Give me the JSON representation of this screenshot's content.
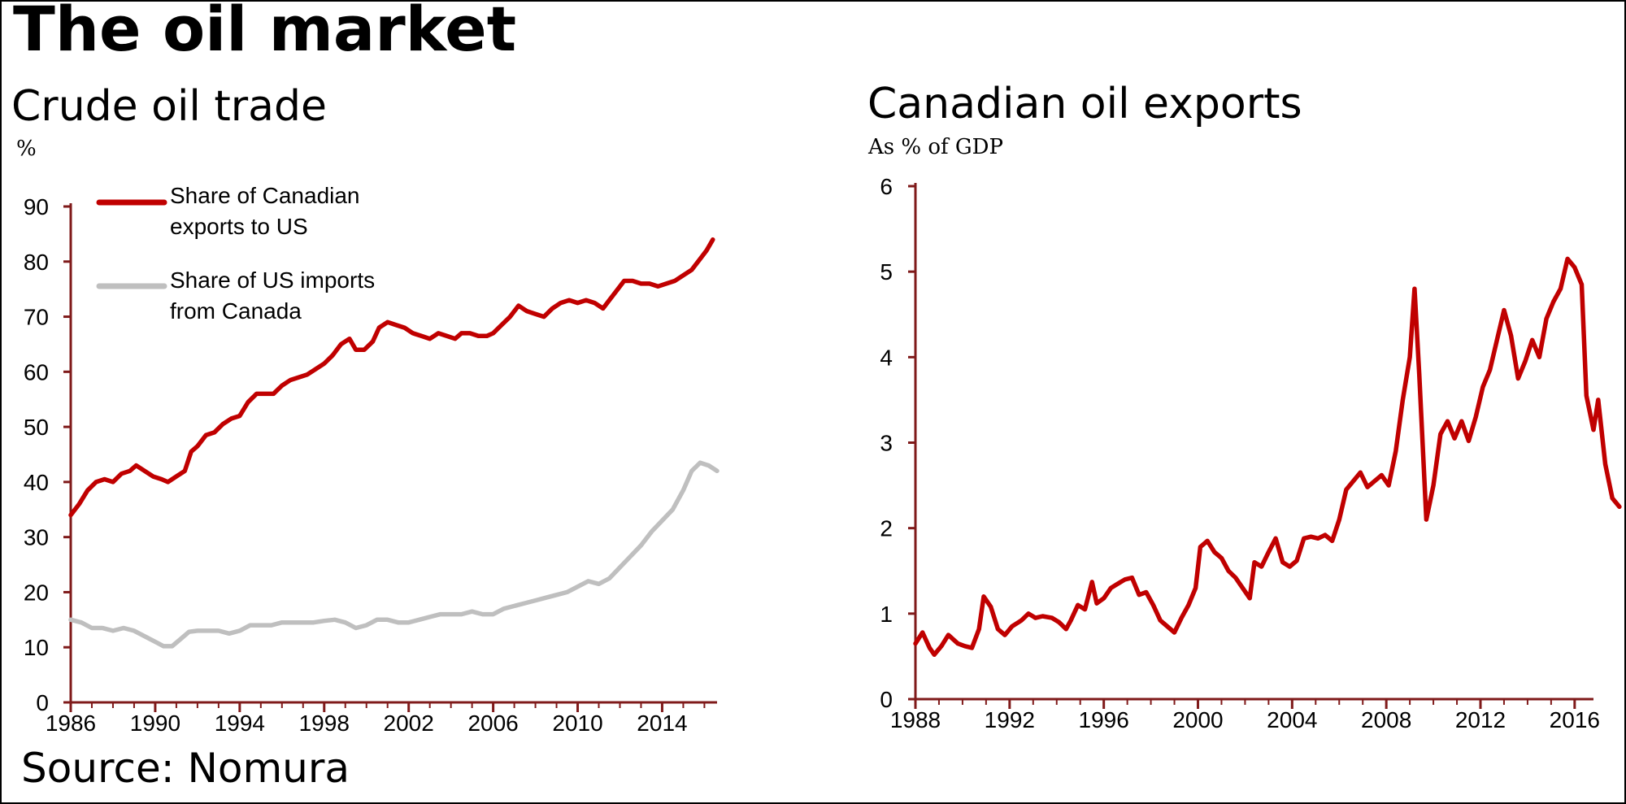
{
  "header": {
    "title": "The oil market"
  },
  "source": "Source: Nomura",
  "colors": {
    "red": "#C00000",
    "gray": "#BFBFBF",
    "axis": "#7F1A1A"
  },
  "chart_data": [
    {
      "type": "line",
      "title": "Crude oil trade",
      "unit": "%",
      "xlabel": "",
      "ylabel": "%",
      "xlim": [
        1986,
        2016.6
      ],
      "ylim": [
        0,
        90
      ],
      "x_ticks": [
        1986,
        1990,
        1994,
        1998,
        2002,
        2006,
        2010,
        2014
      ],
      "y_ticks": [
        0,
        10,
        20,
        30,
        40,
        50,
        60,
        70,
        80,
        90
      ],
      "legend_position": "top-left",
      "series": [
        {
          "name": "Share of Canadian exports to US",
          "legend_lines": [
            "Share of Canadian",
            "exports to US"
          ],
          "color": "#C00000",
          "points": [
            [
              1986.0,
              34
            ],
            [
              1986.4,
              36
            ],
            [
              1986.8,
              38.5
            ],
            [
              1987.2,
              40
            ],
            [
              1987.6,
              40.5
            ],
            [
              1988.0,
              40
            ],
            [
              1988.4,
              41.5
            ],
            [
              1988.8,
              42
            ],
            [
              1989.1,
              43
            ],
            [
              1989.5,
              42
            ],
            [
              1989.9,
              41
            ],
            [
              1990.3,
              40.5
            ],
            [
              1990.6,
              40
            ],
            [
              1991.0,
              41
            ],
            [
              1991.4,
              42
            ],
            [
              1991.7,
              45.5
            ],
            [
              1992.0,
              46.5
            ],
            [
              1992.4,
              48.5
            ],
            [
              1992.8,
              49
            ],
            [
              1993.2,
              50.5
            ],
            [
              1993.6,
              51.5
            ],
            [
              1994.0,
              52
            ],
            [
              1994.4,
              54.5
            ],
            [
              1994.8,
              56
            ],
            [
              1995.2,
              56
            ],
            [
              1995.6,
              56
            ],
            [
              1996.0,
              57.5
            ],
            [
              1996.4,
              58.5
            ],
            [
              1996.8,
              59
            ],
            [
              1997.2,
              59.5
            ],
            [
              1997.6,
              60.5
            ],
            [
              1998.0,
              61.5
            ],
            [
              1998.4,
              63
            ],
            [
              1998.8,
              65
            ],
            [
              1999.2,
              66
            ],
            [
              1999.5,
              64
            ],
            [
              1999.9,
              64
            ],
            [
              2000.3,
              65.5
            ],
            [
              2000.6,
              68
            ],
            [
              2001.0,
              69
            ],
            [
              2001.4,
              68.5
            ],
            [
              2001.8,
              68
            ],
            [
              2002.2,
              67
            ],
            [
              2002.6,
              66.5
            ],
            [
              2003.0,
              66
            ],
            [
              2003.4,
              67
            ],
            [
              2003.8,
              66.5
            ],
            [
              2004.2,
              66
            ],
            [
              2004.5,
              67
            ],
            [
              2004.9,
              67
            ],
            [
              2005.3,
              66.5
            ],
            [
              2005.7,
              66.5
            ],
            [
              2006.0,
              67
            ],
            [
              2006.4,
              68.5
            ],
            [
              2006.8,
              70
            ],
            [
              2007.2,
              72
            ],
            [
              2007.6,
              71
            ],
            [
              2008.0,
              70.5
            ],
            [
              2008.4,
              70
            ],
            [
              2008.8,
              71.5
            ],
            [
              2009.2,
              72.5
            ],
            [
              2009.6,
              73
            ],
            [
              2010.0,
              72.5
            ],
            [
              2010.4,
              73
            ],
            [
              2010.8,
              72.5
            ],
            [
              2011.2,
              71.5
            ],
            [
              2011.5,
              73
            ],
            [
              2011.9,
              75
            ],
            [
              2012.2,
              76.5
            ],
            [
              2012.6,
              76.5
            ],
            [
              2013.0,
              76
            ],
            [
              2013.4,
              76
            ],
            [
              2013.8,
              75.5
            ],
            [
              2014.2,
              76
            ],
            [
              2014.6,
              76.5
            ],
            [
              2015.0,
              77.5
            ],
            [
              2015.4,
              78.5
            ],
            [
              2015.8,
              80.5
            ],
            [
              2016.1,
              82
            ],
            [
              2016.4,
              84
            ]
          ]
        },
        {
          "name": "Share of US imports from Canada",
          "legend_lines": [
            "Share of US imports",
            "from Canada"
          ],
          "color": "#BFBFBF",
          "points": [
            [
              1986.0,
              15
            ],
            [
              1986.5,
              14.5
            ],
            [
              1987.0,
              13.5
            ],
            [
              1987.5,
              13.5
            ],
            [
              1988.0,
              13
            ],
            [
              1988.5,
              13.5
            ],
            [
              1989.0,
              13
            ],
            [
              1989.5,
              12
            ],
            [
              1990.0,
              11
            ],
            [
              1990.4,
              10.2
            ],
            [
              1990.8,
              10.2
            ],
            [
              1991.2,
              11.5
            ],
            [
              1991.6,
              12.8
            ],
            [
              1992.0,
              13
            ],
            [
              1992.5,
              13
            ],
            [
              1993.0,
              13
            ],
            [
              1993.5,
              12.5
            ],
            [
              1994.0,
              13
            ],
            [
              1994.5,
              14
            ],
            [
              1995.0,
              14
            ],
            [
              1995.5,
              14
            ],
            [
              1996.0,
              14.5
            ],
            [
              1996.5,
              14.5
            ],
            [
              1997.0,
              14.5
            ],
            [
              1997.5,
              14.5
            ],
            [
              1998.0,
              14.8
            ],
            [
              1998.5,
              15
            ],
            [
              1999.0,
              14.5
            ],
            [
              1999.5,
              13.5
            ],
            [
              2000.0,
              14
            ],
            [
              2000.5,
              15
            ],
            [
              2001.0,
              15
            ],
            [
              2001.5,
              14.5
            ],
            [
              2002.0,
              14.5
            ],
            [
              2002.5,
              15
            ],
            [
              2003.0,
              15.5
            ],
            [
              2003.5,
              16
            ],
            [
              2004.0,
              16
            ],
            [
              2004.5,
              16
            ],
            [
              2005.0,
              16.5
            ],
            [
              2005.5,
              16
            ],
            [
              2006.0,
              16
            ],
            [
              2006.5,
              17
            ],
            [
              2007.0,
              17.5
            ],
            [
              2007.5,
              18
            ],
            [
              2008.0,
              18.5
            ],
            [
              2008.5,
              19
            ],
            [
              2009.0,
              19.5
            ],
            [
              2009.5,
              20
            ],
            [
              2010.0,
              21
            ],
            [
              2010.5,
              22
            ],
            [
              2011.0,
              21.5
            ],
            [
              2011.5,
              22.5
            ],
            [
              2012.0,
              24.5
            ],
            [
              2012.5,
              26.5
            ],
            [
              2013.0,
              28.5
            ],
            [
              2013.5,
              31
            ],
            [
              2014.0,
              33
            ],
            [
              2014.5,
              35
            ],
            [
              2015.0,
              38.5
            ],
            [
              2015.4,
              42
            ],
            [
              2015.8,
              43.5
            ],
            [
              2016.2,
              43
            ],
            [
              2016.6,
              42
            ]
          ]
        }
      ]
    },
    {
      "type": "line",
      "title": "Canadian oil exports",
      "unit": "As % of GDP",
      "xlabel": "",
      "ylabel": "As % of GDP",
      "xlim": [
        1988,
        2016.8
      ],
      "ylim": [
        0,
        6
      ],
      "x_ticks": [
        1988,
        1992,
        1996,
        2000,
        2004,
        2008,
        2012,
        2016
      ],
      "y_ticks": [
        0,
        1,
        2,
        3,
        4,
        5,
        6
      ],
      "legend_position": "none",
      "series": [
        {
          "name": "Canadian oil exports",
          "color": "#C00000",
          "points": [
            [
              1988.0,
              0.65
            ],
            [
              1988.3,
              0.78
            ],
            [
              1988.6,
              0.6
            ],
            [
              1988.8,
              0.52
            ],
            [
              1989.1,
              0.62
            ],
            [
              1989.4,
              0.75
            ],
            [
              1989.8,
              0.65
            ],
            [
              1990.1,
              0.62
            ],
            [
              1990.4,
              0.6
            ],
            [
              1990.7,
              0.82
            ],
            [
              1990.9,
              1.2
            ],
            [
              1991.2,
              1.08
            ],
            [
              1991.5,
              0.82
            ],
            [
              1991.8,
              0.75
            ],
            [
              1992.1,
              0.85
            ],
            [
              1992.5,
              0.92
            ],
            [
              1992.8,
              1.0
            ],
            [
              1993.1,
              0.95
            ],
            [
              1993.4,
              0.97
            ],
            [
              1993.8,
              0.95
            ],
            [
              1994.1,
              0.9
            ],
            [
              1994.4,
              0.82
            ],
            [
              1994.6,
              0.92
            ],
            [
              1994.9,
              1.1
            ],
            [
              1995.2,
              1.05
            ],
            [
              1995.5,
              1.37
            ],
            [
              1995.7,
              1.12
            ],
            [
              1996.0,
              1.18
            ],
            [
              1996.3,
              1.3
            ],
            [
              1996.6,
              1.35
            ],
            [
              1996.9,
              1.4
            ],
            [
              1997.2,
              1.42
            ],
            [
              1997.5,
              1.22
            ],
            [
              1997.8,
              1.25
            ],
            [
              1998.1,
              1.1
            ],
            [
              1998.4,
              0.92
            ],
            [
              1998.7,
              0.85
            ],
            [
              1999.0,
              0.78
            ],
            [
              1999.3,
              0.95
            ],
            [
              1999.6,
              1.1
            ],
            [
              1999.9,
              1.3
            ],
            [
              2000.1,
              1.78
            ],
            [
              2000.4,
              1.85
            ],
            [
              2000.7,
              1.72
            ],
            [
              2001.0,
              1.65
            ],
            [
              2001.3,
              1.5
            ],
            [
              2001.6,
              1.42
            ],
            [
              2001.9,
              1.3
            ],
            [
              2002.2,
              1.18
            ],
            [
              2002.4,
              1.6
            ],
            [
              2002.7,
              1.55
            ],
            [
              2003.0,
              1.72
            ],
            [
              2003.3,
              1.88
            ],
            [
              2003.6,
              1.6
            ],
            [
              2003.9,
              1.55
            ],
            [
              2004.2,
              1.62
            ],
            [
              2004.5,
              1.88
            ],
            [
              2004.8,
              1.9
            ],
            [
              2005.1,
              1.88
            ],
            [
              2005.4,
              1.92
            ],
            [
              2005.7,
              1.85
            ],
            [
              2006.0,
              2.1
            ],
            [
              2006.3,
              2.45
            ],
            [
              2006.6,
              2.55
            ],
            [
              2006.9,
              2.65
            ],
            [
              2007.2,
              2.48
            ],
            [
              2007.5,
              2.55
            ],
            [
              2007.8,
              2.62
            ],
            [
              2008.1,
              2.5
            ],
            [
              2008.4,
              2.9
            ],
            [
              2008.7,
              3.5
            ],
            [
              2009.0,
              4.0
            ],
            [
              2009.2,
              4.8
            ],
            [
              2009.4,
              3.8
            ],
            [
              2009.7,
              2.1
            ],
            [
              2010.0,
              2.5
            ],
            [
              2010.3,
              3.1
            ],
            [
              2010.6,
              3.25
            ],
            [
              2010.9,
              3.05
            ],
            [
              2011.2,
              3.25
            ],
            [
              2011.5,
              3.02
            ],
            [
              2011.8,
              3.3
            ],
            [
              2012.1,
              3.65
            ],
            [
              2012.4,
              3.85
            ],
            [
              2012.7,
              4.2
            ],
            [
              2013.0,
              4.55
            ],
            [
              2013.3,
              4.25
            ],
            [
              2013.6,
              3.75
            ],
            [
              2013.9,
              3.95
            ],
            [
              2014.2,
              4.2
            ],
            [
              2014.5,
              4.0
            ],
            [
              2014.8,
              4.45
            ],
            [
              2015.1,
              4.65
            ],
            [
              2015.4,
              4.8
            ],
            [
              2015.7,
              5.15
            ],
            [
              2016.0,
              5.05
            ],
            [
              2016.3,
              4.85
            ],
            [
              2016.5,
              3.55
            ],
            [
              2016.8,
              3.15
            ],
            [
              2017.0,
              3.5
            ],
            [
              2017.3,
              2.75
            ],
            [
              2017.6,
              2.35
            ],
            [
              2017.9,
              2.25
            ]
          ]
        }
      ]
    }
  ]
}
